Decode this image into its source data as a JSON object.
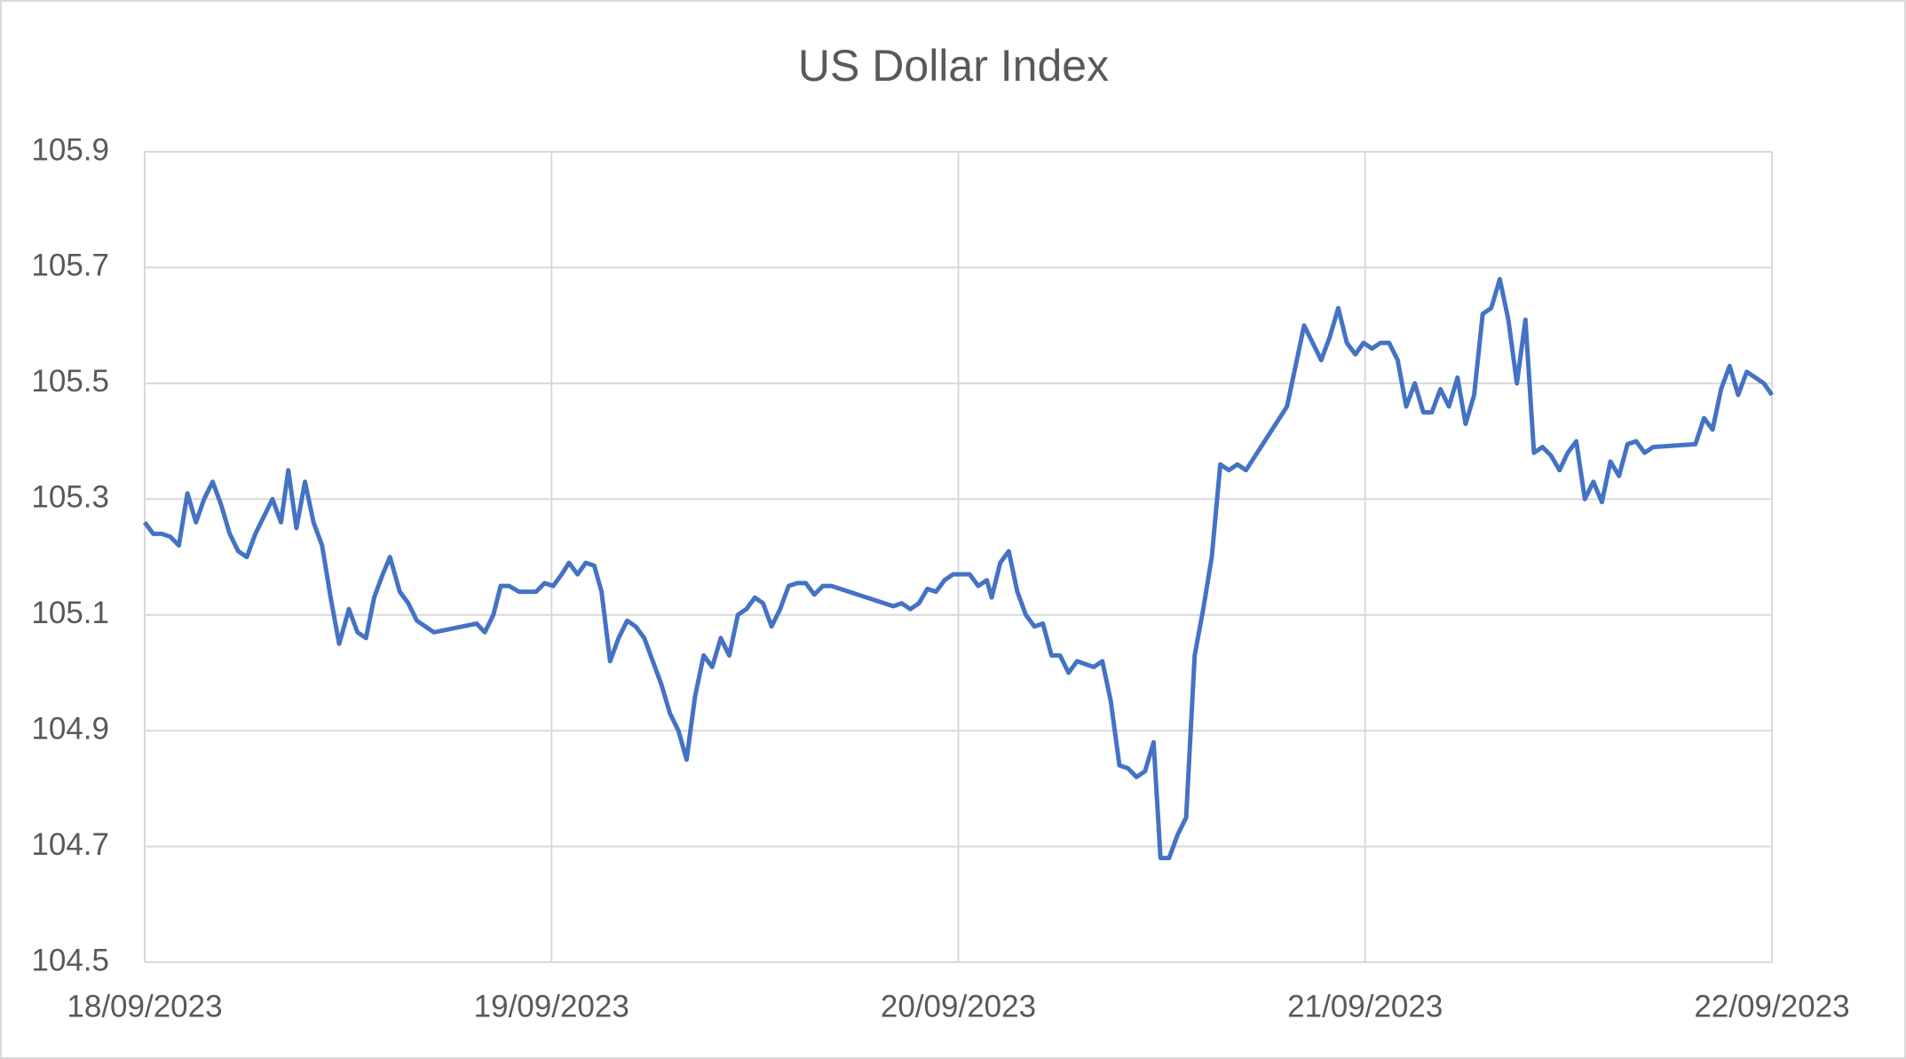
{
  "chart_data": {
    "type": "line",
    "title": "US Dollar Index",
    "x": [
      45187.0,
      45187.021,
      45187.042,
      45187.063,
      45187.084,
      45187.105,
      45187.126,
      45187.146,
      45187.167,
      45187.188,
      45187.209,
      45187.23,
      45187.251,
      45187.272,
      45187.293,
      45187.314,
      45187.335,
      45187.353,
      45187.373,
      45187.394,
      45187.415,
      45187.436,
      45187.457,
      45187.478,
      45187.502,
      45187.523,
      45187.544,
      45187.564,
      45187.585,
      45187.603,
      45187.627,
      45187.648,
      45187.669,
      45187.69,
      45187.711,
      45187.816,
      45187.836,
      45187.857,
      45187.875,
      45187.896,
      45187.92,
      45187.962,
      45187.983,
      45188.004,
      45188.025,
      45188.043,
      45188.064,
      45188.084,
      45188.105,
      45188.123,
      45188.144,
      45188.165,
      45188.186,
      45188.207,
      45188.228,
      45188.249,
      45188.27,
      45188.291,
      45188.312,
      45188.332,
      45188.353,
      45188.374,
      45188.395,
      45188.416,
      45188.437,
      45188.458,
      45188.479,
      45188.5,
      45188.52,
      45188.541,
      45188.562,
      45188.583,
      45188.604,
      45188.625,
      45188.646,
      45188.667,
      45188.688,
      45188.84,
      45188.861,
      45188.882,
      45188.903,
      45188.924,
      45188.945,
      45188.966,
      45188.987,
      45189.007,
      45189.028,
      45189.049,
      45189.07,
      45189.082,
      45189.103,
      45189.124,
      45189.145,
      45189.166,
      45189.187,
      45189.208,
      45189.229,
      45189.25,
      45189.271,
      45189.292,
      45189.312,
      45189.333,
      45189.354,
      45189.375,
      45189.396,
      45189.417,
      45189.438,
      45189.459,
      45189.48,
      45189.497,
      45189.518,
      45189.539,
      45189.56,
      45189.581,
      45189.602,
      45189.623,
      45189.644,
      45189.665,
      45189.686,
      45189.707,
      45189.808,
      45189.829,
      45189.85,
      45189.871,
      45189.892,
      45189.913,
      45189.934,
      45189.955,
      45189.976,
      45189.996,
      45190.017,
      45190.038,
      45190.059,
      45190.08,
      45190.101,
      45190.122,
      45190.143,
      45190.164,
      45190.185,
      45190.206,
      45190.227,
      45190.247,
      45190.268,
      45190.289,
      45190.31,
      45190.331,
      45190.352,
      45190.373,
      45190.394,
      45190.415,
      45190.436,
      45190.457,
      45190.478,
      45190.498,
      45190.519,
      45190.54,
      45190.561,
      45190.582,
      45190.603,
      45190.624,
      45190.645,
      45190.666,
      45190.687,
      45190.708,
      45190.812,
      45190.833,
      45190.854,
      45190.875,
      45190.896,
      45190.917,
      45190.938,
      45190.959,
      45190.98,
      45191.0
    ],
    "series": [
      {
        "name": "US Dollar Index",
        "color": "#4472c4",
        "values": [
          105.26,
          105.24,
          105.24,
          105.235,
          105.22,
          105.31,
          105.26,
          105.3,
          105.33,
          105.29,
          105.24,
          105.21,
          105.2,
          105.24,
          105.27,
          105.3,
          105.26,
          105.35,
          105.25,
          105.33,
          105.26,
          105.22,
          105.13,
          105.05,
          105.11,
          105.07,
          105.06,
          105.13,
          105.17,
          105.2,
          105.14,
          105.12,
          105.09,
          105.08,
          105.07,
          105.085,
          105.07,
          105.1,
          105.15,
          105.15,
          105.14,
          105.14,
          105.155,
          105.15,
          105.17,
          105.19,
          105.17,
          105.19,
          105.185,
          105.14,
          105.02,
          105.06,
          105.09,
          105.08,
          105.06,
          105.02,
          104.98,
          104.93,
          104.9,
          104.85,
          104.96,
          105.03,
          105.01,
          105.06,
          105.03,
          105.1,
          105.11,
          105.13,
          105.12,
          105.08,
          105.11,
          105.15,
          105.155,
          105.155,
          105.135,
          105.15,
          105.15,
          105.115,
          105.12,
          105.11,
          105.12,
          105.145,
          105.14,
          105.16,
          105.17,
          105.17,
          105.17,
          105.15,
          105.16,
          105.13,
          105.19,
          105.21,
          105.14,
          105.1,
          105.08,
          105.085,
          105.03,
          105.03,
          105.0,
          105.02,
          105.015,
          105.01,
          105.02,
          104.95,
          104.84,
          104.835,
          104.82,
          104.83,
          104.88,
          104.68,
          104.68,
          104.72,
          104.75,
          105.03,
          105.11,
          105.2,
          105.36,
          105.35,
          105.36,
          105.35,
          105.46,
          105.53,
          105.6,
          105.57,
          105.54,
          105.58,
          105.63,
          105.57,
          105.55,
          105.57,
          105.56,
          105.57,
          105.57,
          105.54,
          105.46,
          105.5,
          105.45,
          105.45,
          105.49,
          105.46,
          105.51,
          105.43,
          105.48,
          105.62,
          105.63,
          105.68,
          105.61,
          105.5,
          105.61,
          105.38,
          105.39,
          105.375,
          105.35,
          105.38,
          105.4,
          105.3,
          105.33,
          105.295,
          105.365,
          105.34,
          105.395,
          105.4,
          105.38,
          105.39,
          105.395,
          105.44,
          105.42,
          105.49,
          105.53,
          105.48,
          105.52,
          105.51,
          105.5,
          105.48
        ]
      }
    ],
    "xlim": [
      45187,
      45191
    ],
    "xticks": [
      {
        "value": 45187,
        "label": "18/09/2023"
      },
      {
        "value": 45188,
        "label": "19/09/2023"
      },
      {
        "value": 45189,
        "label": "20/09/2023"
      },
      {
        "value": 45190,
        "label": "21/09/2023"
      },
      {
        "value": 45191,
        "label": "22/09/2023"
      }
    ],
    "ylim": [
      104.5,
      105.9
    ],
    "yticks": [
      104.5,
      104.7,
      104.9,
      105.1,
      105.3,
      105.5,
      105.7,
      105.9
    ],
    "grid": true
  }
}
